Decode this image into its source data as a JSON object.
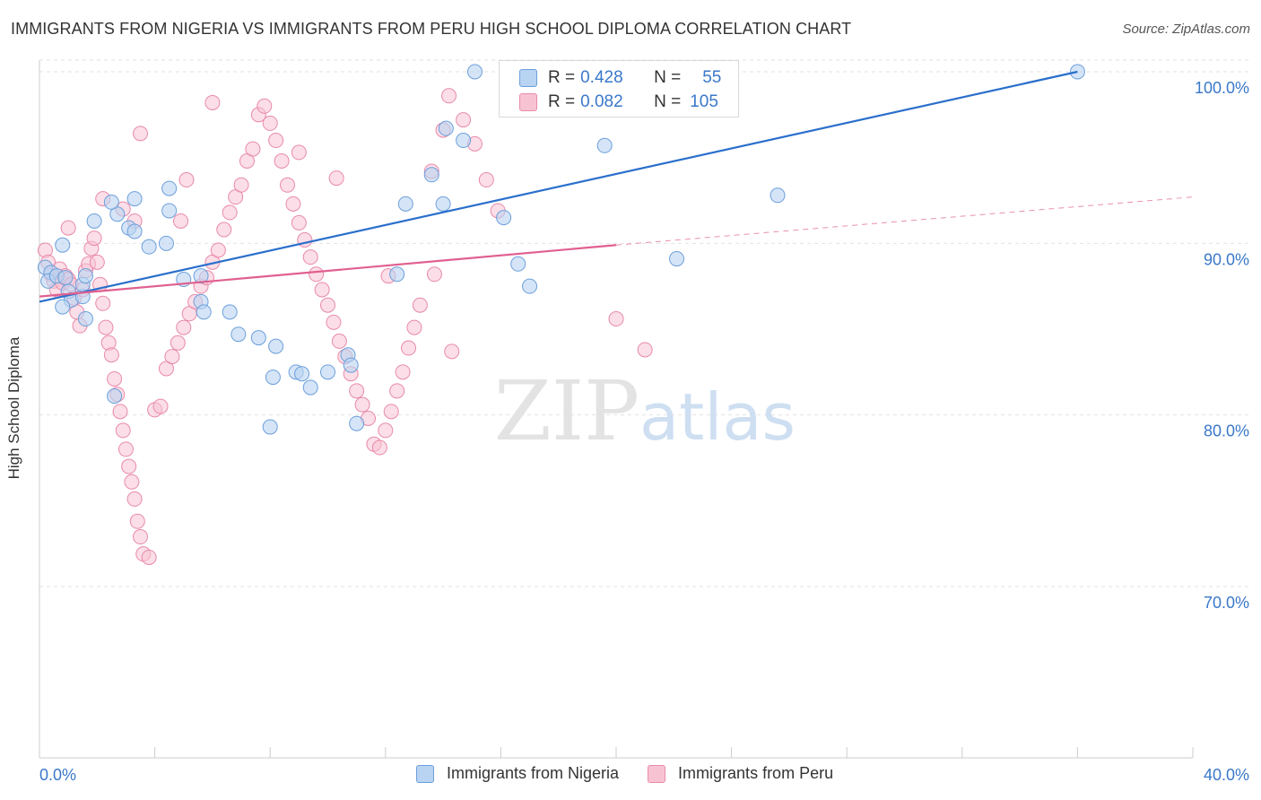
{
  "title": "IMMIGRANTS FROM NIGERIA VS IMMIGRANTS FROM PERU HIGH SCHOOL DIPLOMA CORRELATION CHART",
  "source": "Source: ZipAtlas.com",
  "watermark": {
    "zip": "ZIP",
    "atlas": "atlas"
  },
  "legend": {
    "rows": [
      {
        "r_label": "R =",
        "r_value": "0.428",
        "n_label": "N =",
        "n_value": "55"
      },
      {
        "r_label": "R =",
        "r_value": "0.082",
        "n_label": "N =",
        "n_value": "105"
      }
    ]
  },
  "colors": {
    "nigeria_fill": "#b9d3f2",
    "nigeria_stroke": "#6c9fdb",
    "nigeria_line": "#2a6fcc",
    "peru_fill": "#f7c3d3",
    "peru_stroke": "#e88aaa",
    "peru_line": "#e06090",
    "tick_label": "#3a78c9",
    "grid": "#e2e2e2"
  },
  "chart_data": {
    "type": "scatter",
    "title": "IMMIGRANTS FROM NIGERIA VS IMMIGRANTS FROM PERU HIGH SCHOOL DIPLOMA CORRELATION CHART",
    "xlabel": "",
    "ylabel": "High School Diploma",
    "xlim": [
      0,
      40
    ],
    "ylim": [
      60,
      100
    ],
    "x_tick_labels": [
      "0.0%",
      "40.0%"
    ],
    "y_ticks": [
      {
        "value": 100,
        "label": "100.0%"
      },
      {
        "value": 90,
        "label": "90.0%"
      },
      {
        "value": 80,
        "label": "80.0%"
      },
      {
        "value": 70,
        "label": "70.0%"
      }
    ],
    "grid": true,
    "legend_position": "top-center",
    "series": [
      {
        "name": "Immigrants from Nigeria",
        "r": 0.428,
        "n": 55,
        "trend": {
          "x0": 0,
          "y0": 86.6,
          "x1": 36,
          "y1": 100.0
        },
        "points": [
          [
            0.2,
            88.6
          ],
          [
            0.4,
            88.3
          ],
          [
            0.3,
            87.8
          ],
          [
            0.6,
            88.1
          ],
          [
            0.8,
            89.9
          ],
          [
            0.9,
            88.0
          ],
          [
            1.0,
            87.2
          ],
          [
            1.1,
            86.7
          ],
          [
            0.8,
            86.3
          ],
          [
            1.5,
            86.9
          ],
          [
            1.5,
            87.6
          ],
          [
            1.6,
            88.1
          ],
          [
            1.6,
            85.6
          ],
          [
            1.9,
            91.3
          ],
          [
            2.7,
            91.7
          ],
          [
            2.5,
            92.4
          ],
          [
            3.1,
            90.9
          ],
          [
            3.3,
            92.6
          ],
          [
            3.3,
            90.7
          ],
          [
            3.8,
            89.8
          ],
          [
            4.4,
            90.0
          ],
          [
            4.5,
            91.9
          ],
          [
            4.5,
            93.2
          ],
          [
            5.0,
            87.9
          ],
          [
            5.6,
            86.6
          ],
          [
            5.6,
            88.1
          ],
          [
            5.7,
            86.0
          ],
          [
            6.6,
            86.0
          ],
          [
            6.9,
            84.7
          ],
          [
            7.6,
            84.5
          ],
          [
            8.2,
            84.0
          ],
          [
            8.1,
            82.2
          ],
          [
            8.0,
            79.3
          ],
          [
            8.9,
            82.5
          ],
          [
            9.1,
            82.4
          ],
          [
            9.4,
            81.6
          ],
          [
            10.0,
            82.5
          ],
          [
            10.7,
            83.5
          ],
          [
            10.8,
            82.9
          ],
          [
            11.0,
            79.5
          ],
          [
            12.4,
            88.2
          ],
          [
            12.7,
            92.3
          ],
          [
            13.6,
            94.0
          ],
          [
            14.0,
            92.3
          ],
          [
            14.7,
            96.0
          ],
          [
            14.1,
            96.7
          ],
          [
            15.1,
            100.0
          ],
          [
            16.6,
            88.8
          ],
          [
            17.0,
            87.5
          ],
          [
            16.1,
            91.5
          ],
          [
            19.6,
            95.7
          ],
          [
            22.1,
            89.1
          ],
          [
            25.6,
            92.8
          ],
          [
            2.6,
            81.1
          ],
          [
            36.0,
            100.0
          ]
        ]
      },
      {
        "name": "Immigrants from Peru",
        "r": 0.082,
        "n": 105,
        "trend": {
          "x0": 0,
          "y0": 86.9,
          "x1": 20,
          "y1": 89.9
        },
        "trend_extension": {
          "x0": 20,
          "y0": 89.9,
          "x1": 40,
          "y1": 92.7
        },
        "points": [
          [
            0.2,
            89.6
          ],
          [
            0.3,
            88.9
          ],
          [
            0.4,
            88.2
          ],
          [
            0.5,
            87.8
          ],
          [
            0.6,
            87.3
          ],
          [
            0.7,
            88.5
          ],
          [
            0.8,
            87.7
          ],
          [
            0.9,
            88.1
          ],
          [
            1.0,
            87.9
          ],
          [
            1.1,
            87.6
          ],
          [
            1.2,
            86.8
          ],
          [
            1.3,
            86.0
          ],
          [
            1.4,
            85.2
          ],
          [
            1.5,
            87.3
          ],
          [
            1.6,
            88.4
          ],
          [
            1.7,
            88.8
          ],
          [
            1.8,
            89.7
          ],
          [
            1.9,
            90.3
          ],
          [
            2.0,
            88.9
          ],
          [
            2.1,
            87.6
          ],
          [
            2.2,
            86.5
          ],
          [
            2.3,
            85.1
          ],
          [
            2.4,
            84.2
          ],
          [
            2.5,
            83.5
          ],
          [
            2.6,
            82.1
          ],
          [
            2.7,
            81.2
          ],
          [
            2.8,
            80.2
          ],
          [
            2.9,
            79.1
          ],
          [
            3.0,
            78.0
          ],
          [
            3.1,
            77.0
          ],
          [
            3.2,
            76.1
          ],
          [
            3.3,
            75.1
          ],
          [
            3.4,
            73.8
          ],
          [
            3.5,
            72.9
          ],
          [
            3.6,
            71.9
          ],
          [
            3.8,
            71.7
          ],
          [
            4.0,
            80.3
          ],
          [
            4.2,
            80.5
          ],
          [
            4.4,
            82.7
          ],
          [
            4.6,
            83.4
          ],
          [
            4.8,
            84.2
          ],
          [
            5.0,
            85.1
          ],
          [
            5.2,
            85.9
          ],
          [
            5.4,
            86.6
          ],
          [
            5.6,
            87.5
          ],
          [
            5.8,
            88.0
          ],
          [
            6.0,
            88.9
          ],
          [
            6.2,
            89.6
          ],
          [
            6.4,
            90.8
          ],
          [
            6.6,
            91.8
          ],
          [
            6.8,
            92.7
          ],
          [
            7.0,
            93.4
          ],
          [
            7.2,
            94.8
          ],
          [
            7.4,
            95.5
          ],
          [
            7.6,
            97.5
          ],
          [
            7.8,
            98.0
          ],
          [
            8.0,
            97.0
          ],
          [
            8.2,
            96.0
          ],
          [
            8.4,
            94.8
          ],
          [
            8.6,
            93.4
          ],
          [
            8.8,
            92.3
          ],
          [
            9.0,
            91.2
          ],
          [
            9.2,
            90.2
          ],
          [
            9.4,
            89.2
          ],
          [
            9.6,
            88.2
          ],
          [
            9.8,
            87.3
          ],
          [
            10.0,
            86.4
          ],
          [
            10.2,
            85.4
          ],
          [
            10.4,
            84.3
          ],
          [
            10.6,
            83.4
          ],
          [
            10.8,
            82.4
          ],
          [
            11.0,
            81.4
          ],
          [
            11.2,
            80.6
          ],
          [
            11.4,
            79.8
          ],
          [
            11.6,
            78.3
          ],
          [
            11.8,
            78.1
          ],
          [
            12.0,
            79.1
          ],
          [
            12.2,
            80.2
          ],
          [
            12.4,
            81.4
          ],
          [
            12.6,
            82.5
          ],
          [
            12.8,
            83.9
          ],
          [
            13.0,
            85.1
          ],
          [
            13.2,
            86.4
          ],
          [
            13.6,
            94.2
          ],
          [
            14.0,
            96.6
          ],
          [
            14.2,
            98.6
          ],
          [
            14.7,
            97.2
          ],
          [
            15.1,
            95.8
          ],
          [
            15.5,
            93.7
          ],
          [
            15.9,
            91.9
          ],
          [
            10.3,
            93.8
          ],
          [
            9.0,
            95.3
          ],
          [
            3.5,
            96.4
          ],
          [
            6.0,
            98.2
          ],
          [
            5.1,
            93.7
          ],
          [
            2.2,
            92.6
          ],
          [
            2.9,
            92.0
          ],
          [
            3.3,
            91.3
          ],
          [
            1.0,
            90.9
          ],
          [
            4.9,
            91.3
          ],
          [
            12.1,
            88.1
          ],
          [
            13.7,
            88.2
          ],
          [
            14.3,
            83.7
          ],
          [
            20.0,
            85.6
          ],
          [
            21.0,
            83.8
          ]
        ]
      }
    ]
  },
  "bottom_legend": [
    "Immigrants from Nigeria",
    "Immigrants from Peru"
  ]
}
